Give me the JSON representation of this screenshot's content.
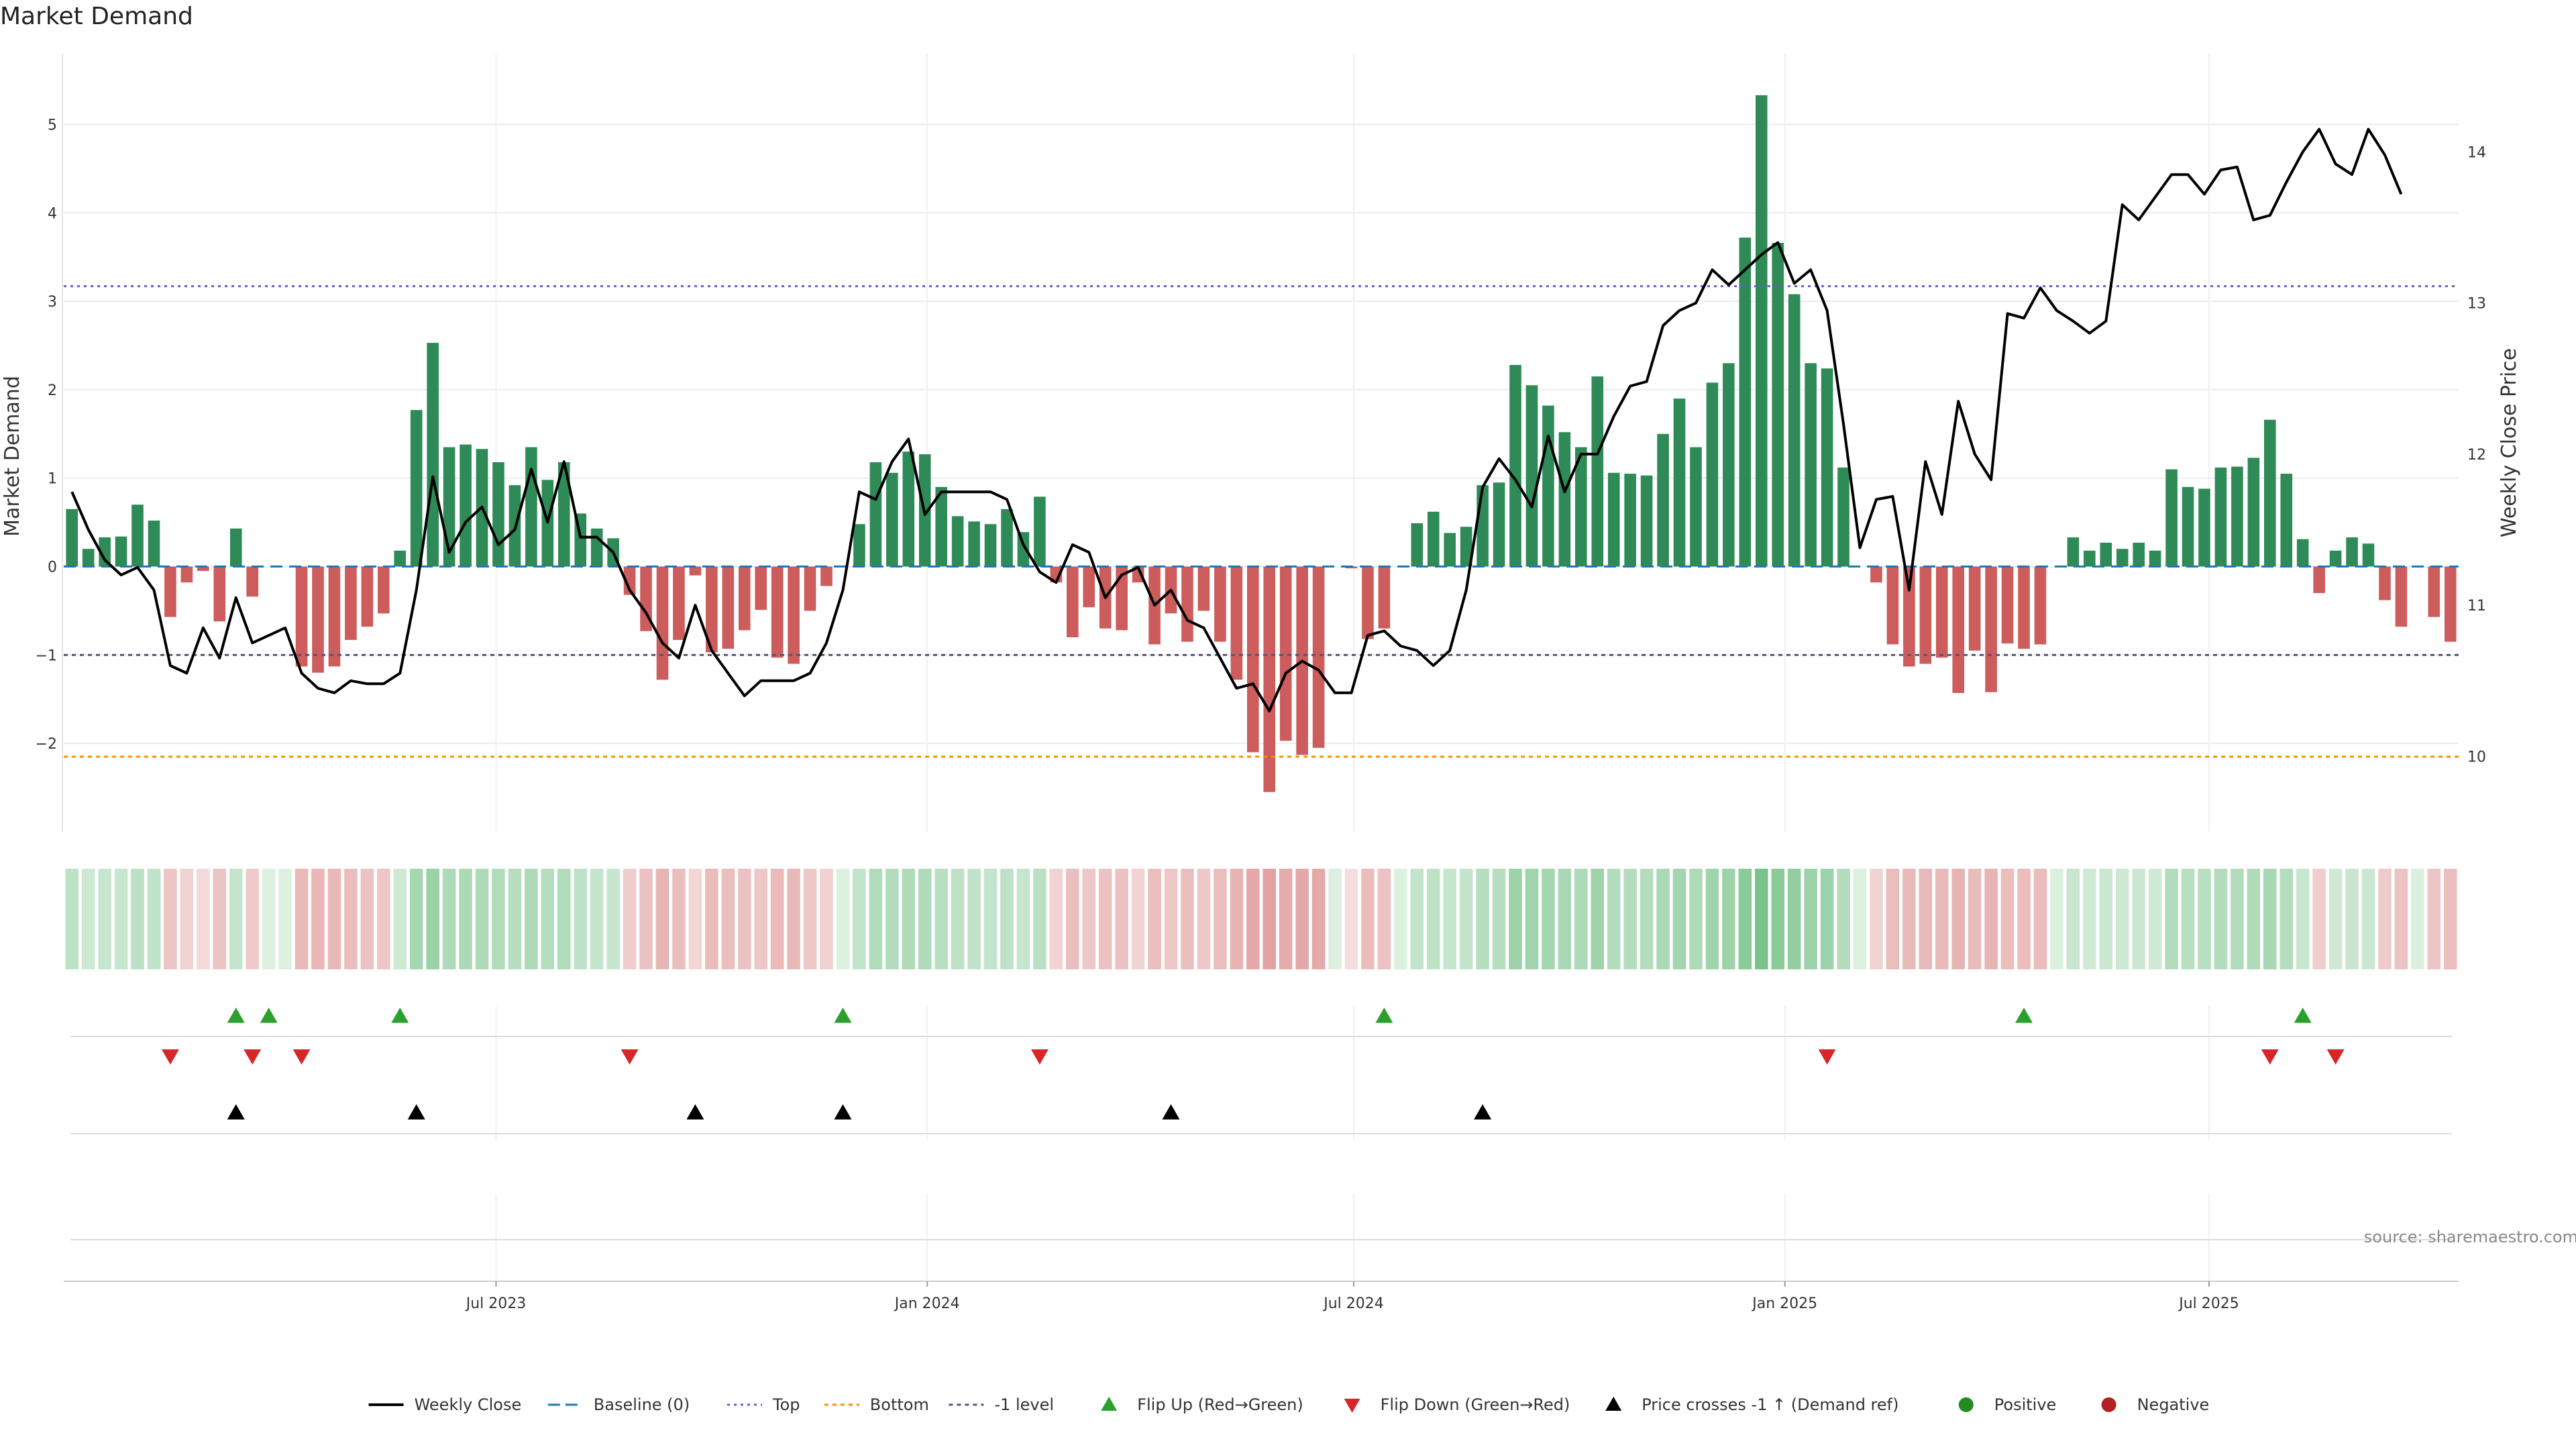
{
  "title": "Market Demand",
  "source": "source: sharemaestro.com",
  "colors": {
    "positive_bar": "#2e8b57",
    "negative_bar": "#cd5c5c",
    "line": "#000000",
    "baseline": "#1f77b4",
    "top": "#6a5acd",
    "bottom": "#ff8c00",
    "minus1": "#555577",
    "flip_up": "#2ca02c",
    "flip_down": "#d62728",
    "cross": "#000000",
    "positive_dot": "#228b22",
    "negative_dot": "#b22222"
  },
  "chart_data": {
    "type": "bar",
    "title": "Market Demand",
    "ylabel_left": "Market Demand",
    "ylabel_right": "Weekly Close Price",
    "ylim_left": [
      -3.0,
      5.8
    ],
    "ylim_right": [
      9.5,
      14.65
    ],
    "yticks_left": [
      -2,
      -1,
      0,
      1,
      2,
      3,
      4,
      5
    ],
    "ytick_labels_left": [
      "−2",
      "−1",
      "0",
      "1",
      "2",
      "3",
      "4",
      "5"
    ],
    "yticks_right": [
      10,
      11,
      12,
      13,
      14
    ],
    "ytick_labels_right": [
      "10",
      "11",
      "12",
      "13",
      "14"
    ],
    "x_start": "2023-01-01",
    "x_step_days": 7,
    "xticks": [
      {
        "date": "2023-07-01",
        "label": "Jul 2023"
      },
      {
        "date": "2024-01-01",
        "label": "Jan 2024"
      },
      {
        "date": "2024-07-01",
        "label": "Jul 2024"
      },
      {
        "date": "2025-01-01",
        "label": "Jan 2025"
      },
      {
        "date": "2025-07-01",
        "label": "Jul 2025"
      }
    ],
    "reference_lines": {
      "baseline": 0,
      "top": 3.17,
      "bottom": -2.15,
      "minus1": -1.0
    },
    "demand": [
      0.65,
      0.2,
      0.33,
      0.34,
      0.7,
      0.52,
      -0.57,
      -0.18,
      -0.05,
      -0.62,
      0.43,
      -0.34,
      0.0,
      0.0,
      -1.13,
      -1.2,
      -1.13,
      -0.83,
      -0.68,
      -0.53,
      0.18,
      1.77,
      2.53,
      1.35,
      1.38,
      1.33,
      1.18,
      0.92,
      1.35,
      0.98,
      1.18,
      0.6,
      0.43,
      0.32,
      -0.32,
      -0.73,
      -1.28,
      -0.83,
      -0.1,
      -0.97,
      -0.93,
      -0.72,
      -0.49,
      -1.03,
      -1.1,
      -0.5,
      -0.22,
      0.0,
      0.48,
      1.18,
      1.06,
      1.3,
      1.27,
      0.9,
      0.57,
      0.51,
      0.48,
      0.65,
      0.39,
      0.79,
      -0.18,
      -0.8,
      -0.46,
      -0.7,
      -0.72,
      -0.18,
      -0.88,
      -0.53,
      -0.85,
      -0.5,
      -0.85,
      -1.28,
      -2.1,
      -2.55,
      -1.97,
      -2.13,
      -2.05,
      0.0,
      -0.02,
      -0.82,
      -0.7,
      0.0,
      0.49,
      0.62,
      0.38,
      0.45,
      0.92,
      0.95,
      2.28,
      2.05,
      1.82,
      1.52,
      1.35,
      2.15,
      1.06,
      1.05,
      1.03,
      1.5,
      1.9,
      1.35,
      2.08,
      2.3,
      3.72,
      5.33,
      3.66,
      3.08,
      2.3,
      2.24,
      1.12,
      0.0,
      -0.18,
      -0.88,
      -1.13,
      -1.1,
      -1.03,
      -1.43,
      -0.95,
      -1.42,
      -0.87,
      -0.93,
      -0.88,
      0.0,
      0.33,
      0.18,
      0.27,
      0.2,
      0.27,
      0.18,
      1.1,
      0.9,
      0.88,
      1.12,
      1.13,
      1.23,
      1.66,
      1.05,
      0.31,
      -0.3,
      0.18,
      0.33,
      0.26,
      -0.38,
      -0.68,
      0.0,
      -0.57,
      -0.85
    ],
    "close": [
      11.75,
      11.5,
      11.3,
      11.2,
      11.25,
      11.1,
      10.6,
      10.55,
      10.85,
      10.65,
      11.05,
      10.75,
      10.8,
      10.85,
      10.55,
      10.45,
      10.42,
      10.5,
      10.48,
      10.48,
      10.55,
      11.1,
      11.85,
      11.35,
      11.55,
      11.65,
      11.4,
      11.5,
      11.9,
      11.55,
      11.95,
      11.45,
      11.45,
      11.35,
      11.1,
      10.95,
      10.75,
      10.65,
      11.0,
      10.7,
      10.55,
      10.4,
      10.5,
      10.5,
      10.5,
      10.55,
      10.75,
      11.1,
      11.75,
      11.7,
      11.95,
      12.1,
      11.6,
      11.75,
      11.75,
      11.75,
      11.75,
      11.7,
      11.4,
      11.22,
      11.15,
      11.4,
      11.35,
      11.05,
      11.2,
      11.25,
      11.0,
      11.1,
      10.9,
      10.85,
      10.65,
      10.45,
      10.48,
      10.3,
      10.55,
      10.63,
      10.57,
      10.42,
      10.42,
      10.8,
      10.83,
      10.73,
      10.7,
      10.6,
      10.7,
      11.1,
      11.78,
      11.97,
      11.83,
      11.65,
      12.12,
      11.75,
      12.0,
      12.0,
      12.25,
      12.45,
      12.48,
      12.85,
      12.95,
      13.0,
      13.22,
      13.12,
      13.22,
      13.32,
      13.4,
      13.13,
      13.22,
      12.95,
      12.2,
      11.38,
      11.7,
      11.72,
      11.1,
      11.95,
      11.6,
      12.35,
      12.0,
      11.83,
      12.93,
      12.9,
      13.1,
      12.95,
      12.88,
      12.8,
      12.88,
      13.65,
      13.55,
      13.7,
      13.85,
      13.85,
      13.72,
      13.88,
      13.9,
      13.55,
      13.58,
      13.8,
      14.0,
      14.15,
      13.92,
      13.85,
      14.15,
      13.98,
      13.72
    ],
    "flip_up_weeks": [
      10,
      12,
      20,
      47,
      80,
      119,
      136
    ],
    "flip_down_weeks": [
      6,
      11,
      14,
      34,
      59,
      107,
      134,
      138
    ],
    "price_cross_weeks": [
      10,
      21,
      38,
      47,
      67,
      86
    ],
    "legend": [
      {
        "key": "line",
        "label": "Weekly Close"
      },
      {
        "key": "baseline",
        "label": "Baseline (0)"
      },
      {
        "key": "top",
        "label": "Top"
      },
      {
        "key": "bottom",
        "label": "Bottom"
      },
      {
        "key": "minus1",
        "label": "-1 level"
      },
      {
        "key": "flip_up",
        "label": "Flip Up (Red→Green)"
      },
      {
        "key": "flip_down",
        "label": "Flip Down (Green→Red)"
      },
      {
        "key": "cross",
        "label": "Price crosses -1 ↑ (Demand ref)"
      },
      {
        "key": "positive_dot",
        "label": "Positive"
      },
      {
        "key": "negative_dot",
        "label": "Negative"
      }
    ]
  }
}
